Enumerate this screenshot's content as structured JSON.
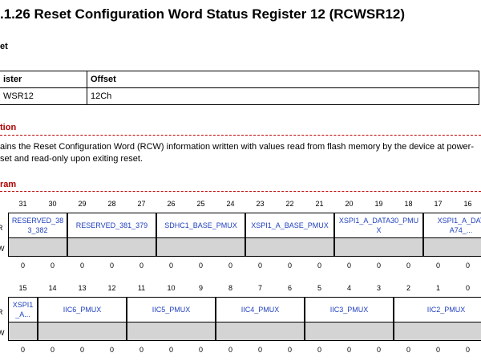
{
  "title": ".1.26  Reset Configuration Word Status Register 12 (RCWSR12)",
  "offset": {
    "heading": "et",
    "table": {
      "header": [
        "ister",
        "Offset"
      ],
      "rows": [
        [
          "WSR12",
          "12Ch"
        ]
      ]
    }
  },
  "description": {
    "heading": "tion",
    "lines": [
      "ains the Reset Configuration Word (RCW) information written with values read from flash memory by the device at power-",
      "set and read-only upon exiting reset."
    ]
  },
  "diagram": {
    "heading": "ram",
    "rows": [
      {
        "bits": [
          31,
          30,
          29,
          28,
          27,
          26,
          25,
          24,
          23,
          22,
          21,
          20,
          19,
          18,
          17,
          16
        ],
        "access": [
          "R",
          "W"
        ],
        "fields": [
          {
            "label": [
              "RESERVED_38",
              "3_382"
            ]
          },
          {
            "label": [
              "RESERVED_381_379"
            ]
          },
          {
            "label": [
              "SDHC1_BASE_PMUX"
            ]
          },
          {
            "label": [
              "XSPI1_A_BASE_PMUX"
            ]
          },
          {
            "label": [
              "XSPI1_A_DATA30_PMU",
              "X"
            ]
          },
          {
            "label": [
              "XSPI1_A_DAT",
              "A74_..."
            ]
          }
        ],
        "reset": [
          0,
          0,
          0,
          0,
          0,
          0,
          0,
          0,
          0,
          0,
          0,
          0,
          0,
          0,
          0,
          0
        ]
      },
      {
        "bits": [
          15,
          14,
          13,
          12,
          11,
          10,
          9,
          8,
          7,
          6,
          5,
          4,
          3,
          2,
          1,
          0
        ],
        "access": [
          "R",
          "W"
        ],
        "fields": [
          {
            "label": [
              "XSPI1",
              "_A..."
            ]
          },
          {
            "label": [
              "IIC6_PMUX"
            ]
          },
          {
            "label": [
              "IIC5_PMUX"
            ]
          },
          {
            "label": [
              "IIC4_PMUX"
            ]
          },
          {
            "label": [
              "IIC3_PMUX"
            ]
          },
          {
            "label": [
              "IIC2_PMUX"
            ]
          }
        ],
        "reset": [
          0,
          0,
          0,
          0,
          0,
          0,
          0,
          0,
          0,
          0,
          0,
          0,
          0,
          0,
          0,
          0
        ]
      }
    ]
  }
}
